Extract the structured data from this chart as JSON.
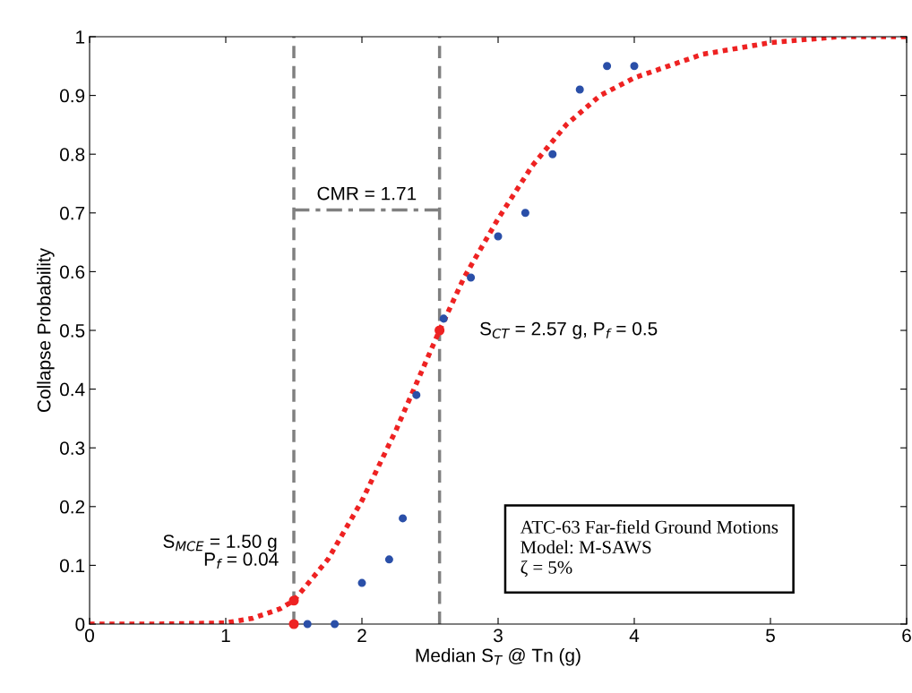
{
  "chart_data": {
    "type": "scatter",
    "xlabel": "Median S$_{T}$ @ Tn (g)",
    "ylabel": "Collapse Probability",
    "xlim": [
      0,
      6
    ],
    "ylim": [
      0,
      1
    ],
    "xticks": [
      0,
      1,
      2,
      3,
      4,
      5,
      6
    ],
    "yticks": [
      0,
      0.1,
      0.2,
      0.3,
      0.4,
      0.5,
      0.6,
      0.7,
      0.8,
      0.9,
      1
    ],
    "grid": false,
    "legend": false,
    "ref_lines": [
      {
        "axis": "x",
        "value": 1.5,
        "color": "#808080",
        "line_style": "dashed"
      },
      {
        "axis": "x",
        "value": 2.57,
        "color": "#808080",
        "line_style": "dashed"
      }
    ],
    "series": [
      {
        "type": "line",
        "color": "#ee2222",
        "line_style": "dotted",
        "marker": "none",
        "x": [
          0,
          0.5,
          1.0,
          1.2,
          1.4,
          1.5,
          1.75,
          2.0,
          2.25,
          2.57,
          2.75,
          3.0,
          3.25,
          3.5,
          3.75,
          4.0,
          4.5,
          5.0,
          5.5,
          6.0
        ],
        "values": [
          0,
          0,
          0.002,
          0.01,
          0.026,
          0.04,
          0.11,
          0.21,
          0.33,
          0.5,
          0.59,
          0.69,
          0.78,
          0.85,
          0.9,
          0.93,
          0.97,
          0.99,
          1.0,
          1.0
        ]
      },
      {
        "type": "line",
        "color": "#808080",
        "line_style": "dashdot",
        "marker": "none",
        "x": [
          1.5,
          2.57
        ],
        "values": [
          0.705,
          0.705
        ]
      },
      {
        "color": "#2a4fa8",
        "marker": "circle",
        "x": [
          1.6,
          1.8,
          2.0,
          2.2,
          2.3,
          2.4,
          2.6,
          2.8,
          3.0,
          3.2,
          3.4,
          3.6,
          3.8,
          4.0
        ],
        "values": [
          0,
          0,
          0.07,
          0.11,
          0.18,
          0.39,
          0.52,
          0.59,
          0.66,
          0.7,
          0.8,
          0.91,
          0.95,
          0.95
        ]
      },
      {
        "color": "#ee2222",
        "marker": "circle",
        "x": [
          1.5,
          1.5
        ],
        "values": [
          0,
          0.04
        ]
      },
      {
        "color": "#ee2222",
        "marker": "circle",
        "x": [
          2.57
        ],
        "values": [
          0.5
        ]
      }
    ],
    "annotations": [
      {
        "text": "CMR = 1.71",
        "x": 2.035,
        "y": 0.705
      },
      {
        "text": "S$_{CT}$ = 2.57 g, P$_{f}$ = 0.5",
        "x": 2.57,
        "y": 0.5
      },
      "S$_{MCE}$ = 1.50 g",
      {
        "text": "P$_{f}$ = 0.04",
        "x": 1.5,
        "y": 0.04
      },
      "ATC-63 Far-field Ground Motions\nModel: M-SAWS\nζ = 5%"
    ]
  }
}
